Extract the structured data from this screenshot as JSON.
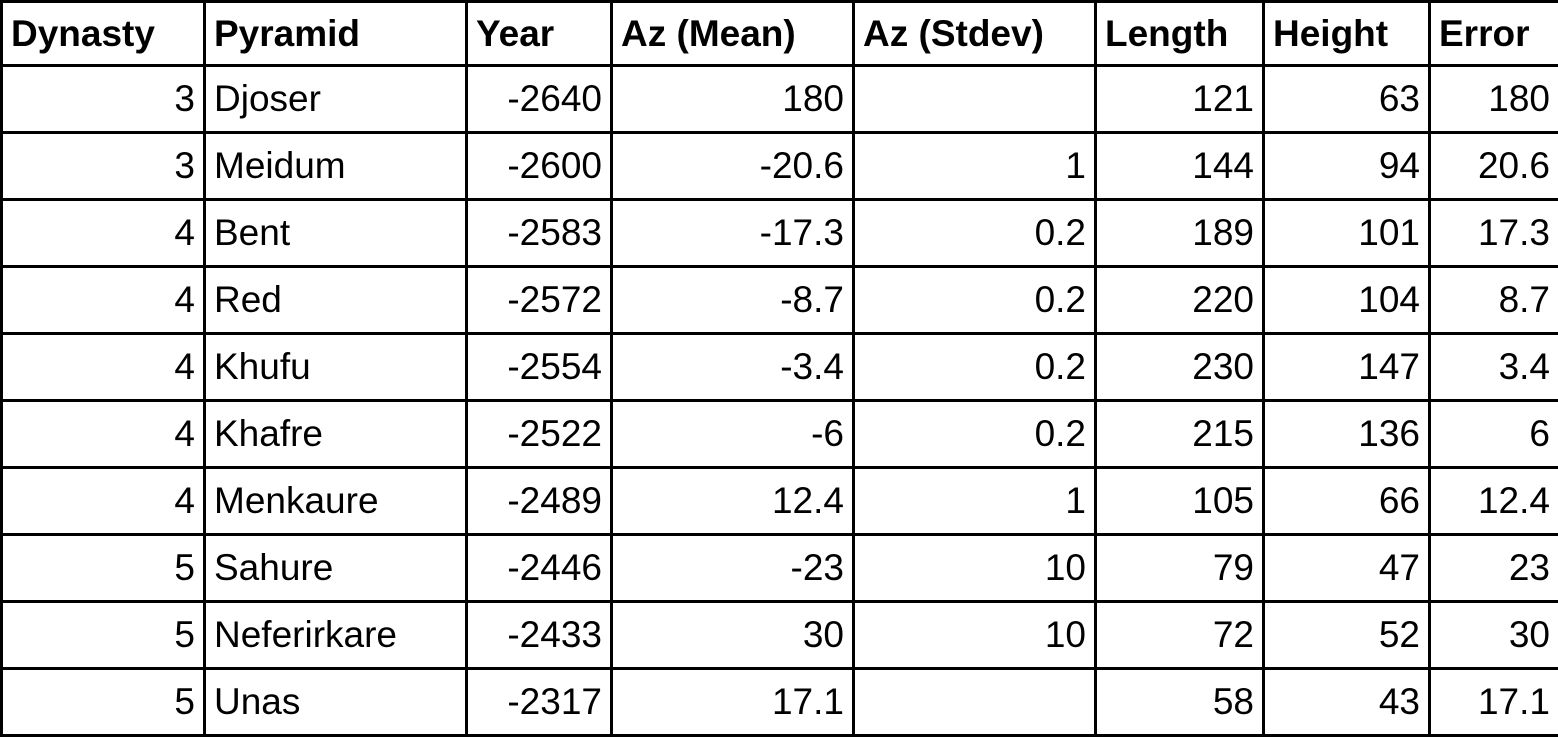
{
  "table": {
    "columns": [
      "Dynasty",
      "Pyramid",
      "Year",
      "Az (Mean)",
      "Az (Stdev)",
      "Length",
      "Height",
      "Error"
    ],
    "rows": [
      [
        3,
        "Djoser",
        -2640,
        180,
        null,
        121,
        63,
        180
      ],
      [
        3,
        "Meidum",
        -2600,
        -20.6,
        1,
        144,
        94,
        20.6
      ],
      [
        4,
        "Bent",
        -2583,
        -17.3,
        0.2,
        189,
        101,
        17.3
      ],
      [
        4,
        "Red",
        -2572,
        -8.7,
        0.2,
        220,
        104,
        8.7
      ],
      [
        4,
        "Khufu",
        -2554,
        -3.4,
        0.2,
        230,
        147,
        3.4
      ],
      [
        4,
        "Khafre",
        -2522,
        -6,
        0.2,
        215,
        136,
        6
      ],
      [
        4,
        "Menkaure",
        -2489,
        12.4,
        1,
        105,
        66,
        12.4
      ],
      [
        5,
        "Sahure",
        -2446,
        -23,
        10,
        79,
        47,
        23
      ],
      [
        5,
        "Neferirkare",
        -2433,
        30,
        10,
        72,
        52,
        30
      ],
      [
        5,
        "Unas",
        -2317,
        17.1,
        null,
        58,
        43,
        17.1
      ]
    ]
  }
}
